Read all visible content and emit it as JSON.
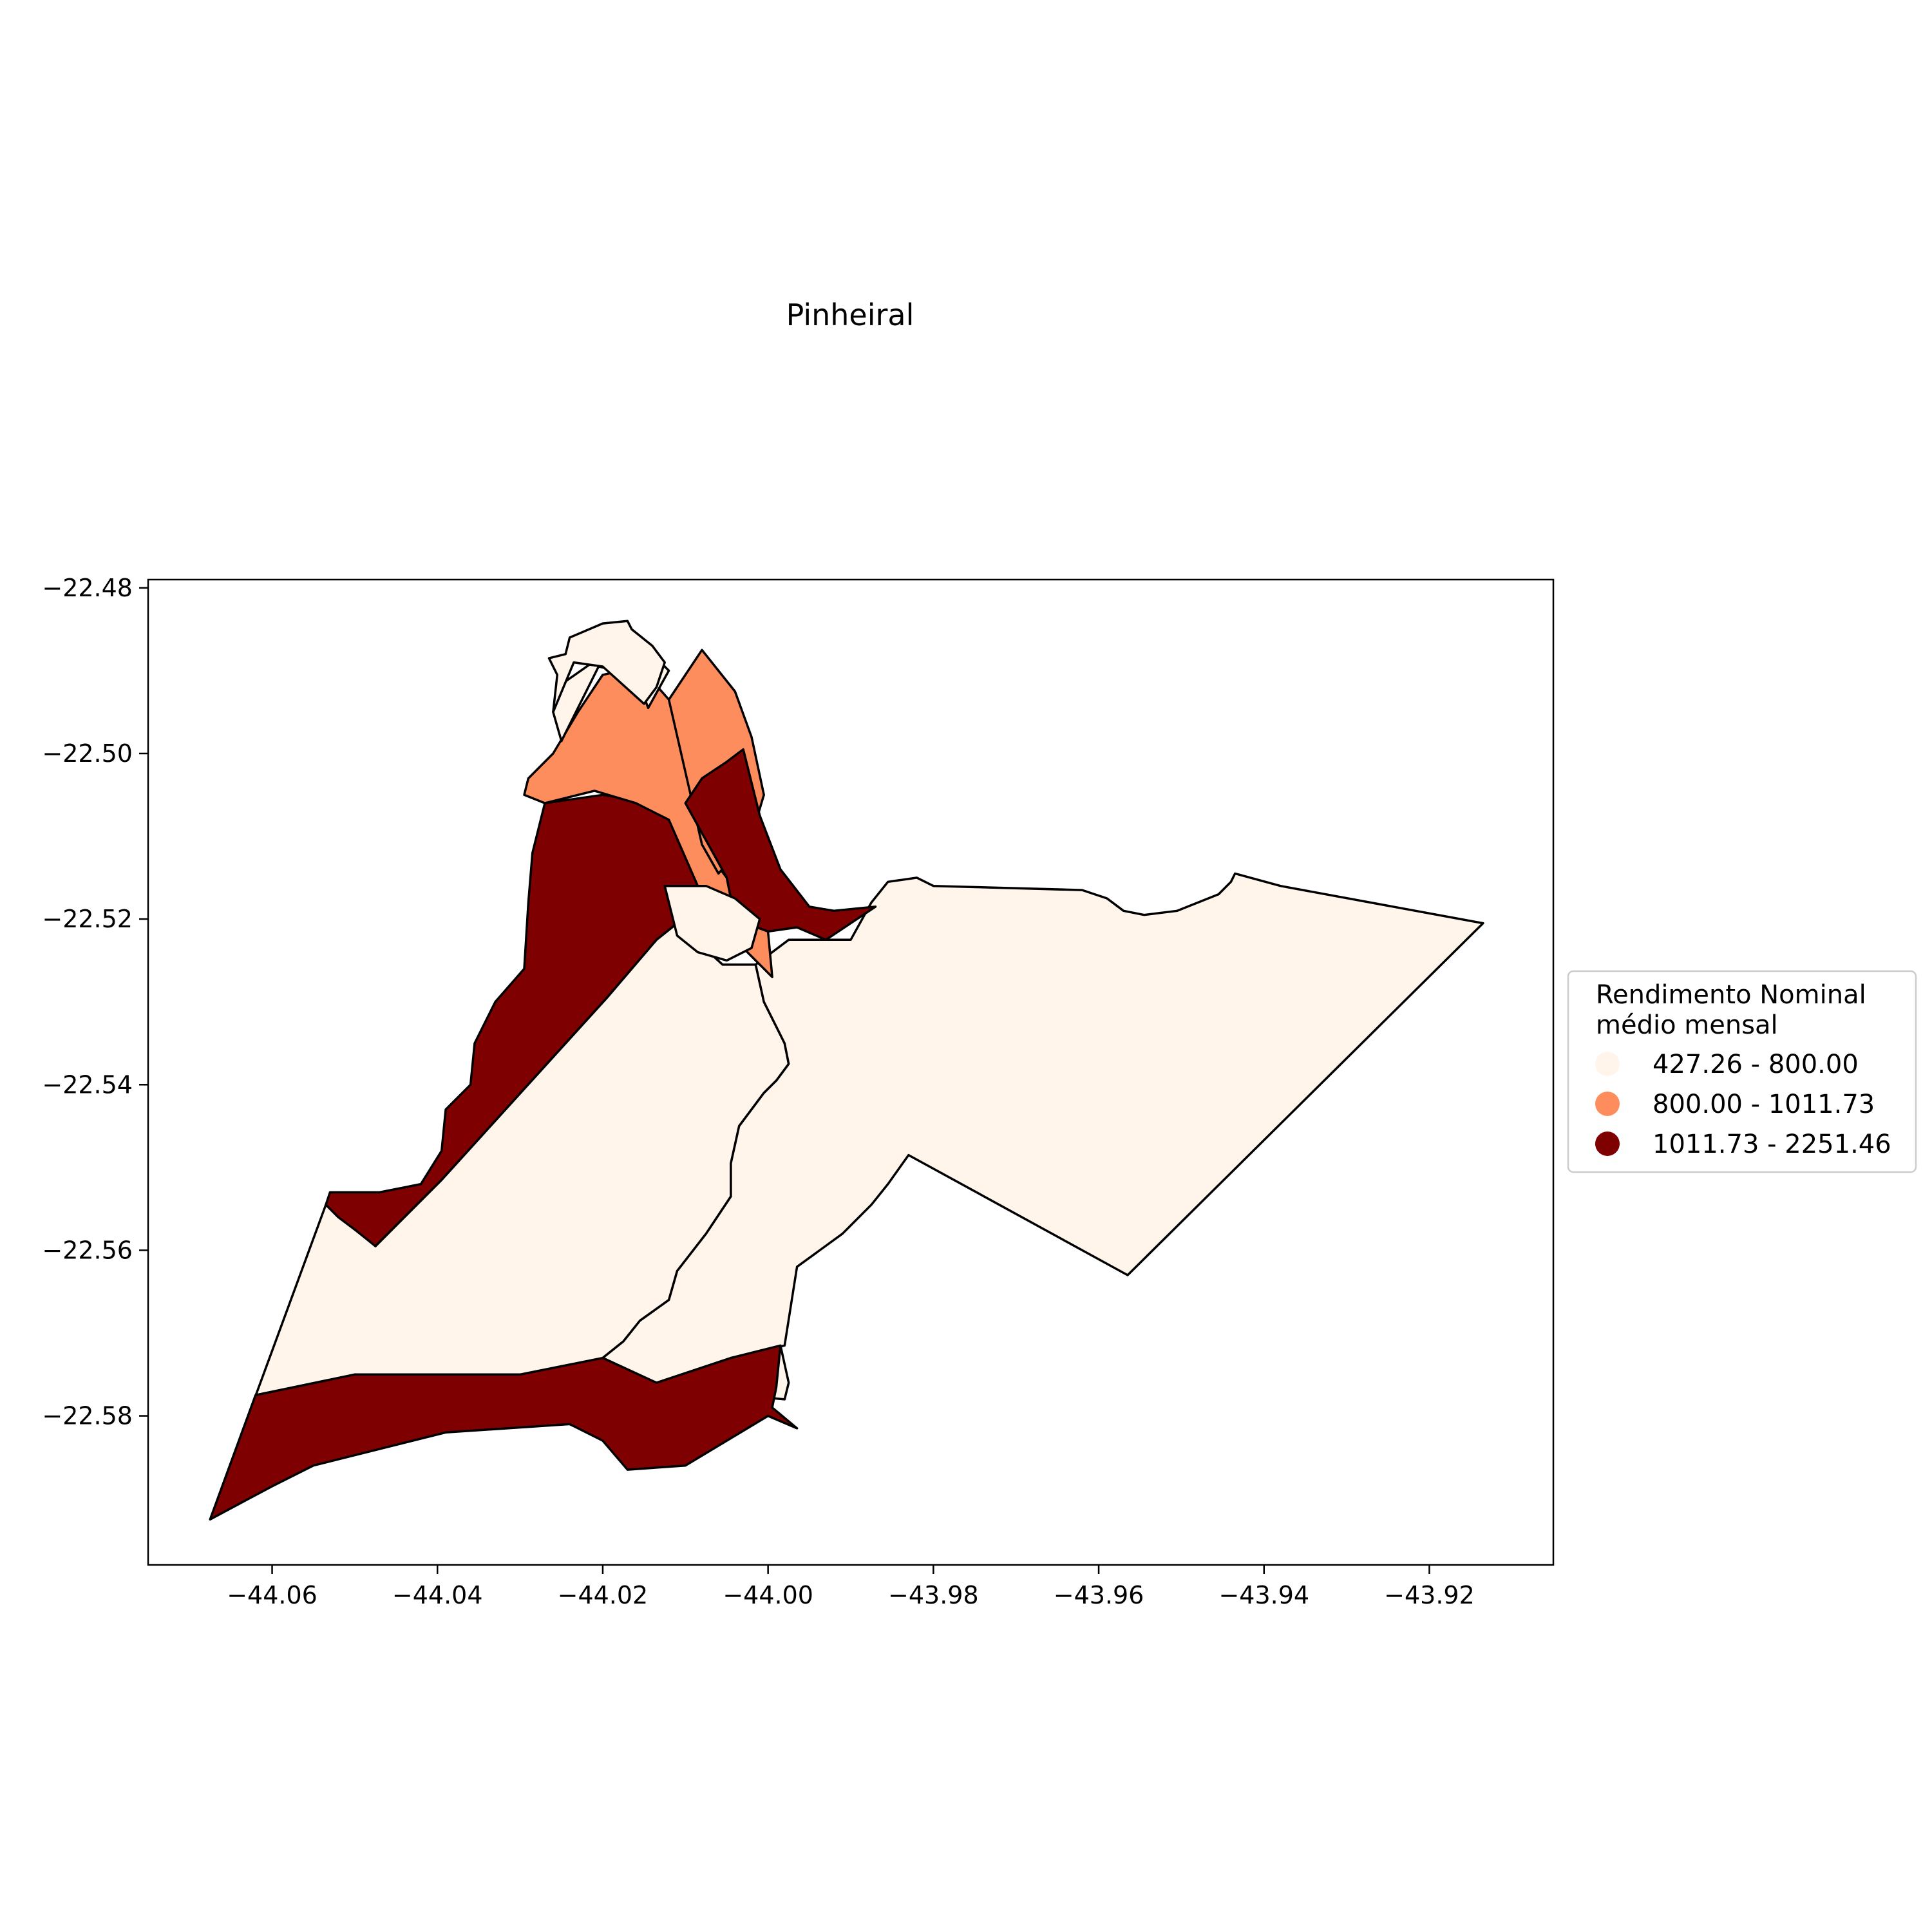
{
  "chart_data": {
    "type": "choropleth map",
    "title": "Pinheiral",
    "xlabel": "",
    "ylabel": "",
    "xlim": [
      -44.075,
      -43.905
    ],
    "ylim": [
      -22.598,
      -22.479
    ],
    "x_ticks": [
      -44.06,
      -44.04,
      -44.02,
      -44.0,
      -43.98,
      -43.96,
      -43.94,
      -43.92
    ],
    "y_ticks": [
      -22.48,
      -22.5,
      -22.52,
      -22.54,
      -22.56,
      -22.58
    ],
    "x_tick_labels": [
      "−44.06",
      "−44.04",
      "−44.02",
      "−44.00",
      "−43.98",
      "−43.96",
      "−43.94",
      "−43.92"
    ],
    "y_tick_labels": [
      "−22.48",
      "−22.50",
      "−22.52",
      "−22.54",
      "−22.56",
      "−22.58"
    ],
    "grid": false,
    "legend": {
      "title_line1": "Rendimento Nominal",
      "title_line2": "médio mensal",
      "placement": "right, outside axes",
      "classes": [
        {
          "label": "427.26 - 800.00",
          "color": "#fff5eb"
        },
        {
          "label": "800.00 - 1011.73",
          "color": "#fd8d5c"
        },
        {
          "label": "1011.73 - 2251.46",
          "color": "#7f0000"
        }
      ]
    },
    "regions": [
      {
        "class": 0,
        "coords": [
          [
            -44.0675,
            -22.5925
          ],
          [
            -44.0535,
            -22.5545
          ],
          [
            -44.0475,
            -22.5595
          ],
          [
            -44.0395,
            -22.5515
          ],
          [
            -44.0195,
            -22.5295
          ],
          [
            -44.0135,
            -22.5225
          ],
          [
            -44.011,
            -22.5205
          ],
          [
            -44.0055,
            -22.5255
          ],
          [
            -44.0015,
            -22.5255
          ],
          [
            -44.0005,
            -22.53
          ],
          [
            -43.999,
            -22.533
          ],
          [
            -43.998,
            -22.535
          ],
          [
            -43.9975,
            -22.5375
          ],
          [
            -43.999,
            -22.5395
          ],
          [
            -44.0005,
            -22.541
          ],
          [
            -44.0035,
            -22.545
          ],
          [
            -44.0045,
            -22.5495
          ],
          [
            -44.0045,
            -22.5535
          ],
          [
            -44.0075,
            -22.558
          ],
          [
            -44.011,
            -22.5625
          ],
          [
            -44.012,
            -22.566
          ],
          [
            -44.0155,
            -22.5685
          ],
          [
            -44.0175,
            -22.571
          ],
          [
            -44.02,
            -22.573
          ],
          [
            -44.0135,
            -22.576
          ],
          [
            -44.0045,
            -22.573
          ],
          [
            -43.9985,
            -22.5715
          ],
          [
            -43.9975,
            -22.576
          ],
          [
            -43.998,
            -22.578
          ],
          [
            -44.03,
            -22.575
          ],
          [
            -44.05,
            -22.575
          ],
          [
            -44.062,
            -22.5775
          ]
        ]
      },
      {
        "class": 0,
        "coords": [
          [
            -44.0015,
            -22.5255
          ],
          [
            -43.9975,
            -22.5225
          ],
          [
            -43.99,
            -22.5225
          ],
          [
            -43.9875,
            -22.518
          ],
          [
            -43.9855,
            -22.5155
          ],
          [
            -43.982,
            -22.515
          ],
          [
            -43.98,
            -22.516
          ],
          [
            -43.962,
            -22.5165
          ],
          [
            -43.959,
            -22.5175
          ],
          [
            -43.957,
            -22.519
          ],
          [
            -43.9545,
            -22.5195
          ],
          [
            -43.9505,
            -22.519
          ],
          [
            -43.9455,
            -22.517
          ],
          [
            -43.944,
            -22.5155
          ],
          [
            -43.9435,
            -22.5145
          ],
          [
            -43.938,
            -22.516
          ],
          [
            -43.9135,
            -22.5205
          ],
          [
            -43.9565,
            -22.563
          ],
          [
            -43.983,
            -22.5485
          ],
          [
            -43.9855,
            -22.552
          ],
          [
            -43.9875,
            -22.5545
          ],
          [
            -43.991,
            -22.558
          ],
          [
            -43.9965,
            -22.562
          ],
          [
            -43.998,
            -22.5715
          ],
          [
            -44.0045,
            -22.573
          ],
          [
            -44.0135,
            -22.576
          ],
          [
            -44.02,
            -22.573
          ],
          [
            -44.0175,
            -22.571
          ],
          [
            -44.0155,
            -22.5685
          ],
          [
            -44.012,
            -22.566
          ],
          [
            -44.011,
            -22.5625
          ],
          [
            -44.0075,
            -22.558
          ],
          [
            -44.0045,
            -22.5535
          ],
          [
            -44.0045,
            -22.5495
          ],
          [
            -44.0035,
            -22.545
          ],
          [
            -44.0005,
            -22.541
          ],
          [
            -43.999,
            -22.5395
          ],
          [
            -43.9975,
            -22.5375
          ],
          [
            -43.998,
            -22.535
          ],
          [
            -43.999,
            -22.533
          ],
          [
            -44.0005,
            -22.53
          ]
        ]
      },
      {
        "class": 2,
        "coords": [
          [
            -44.062,
            -22.5775
          ],
          [
            -44.05,
            -22.575
          ],
          [
            -44.03,
            -22.575
          ],
          [
            -44.02,
            -22.573
          ],
          [
            -44.0135,
            -22.576
          ],
          [
            -44.0045,
            -22.573
          ],
          [
            -43.9985,
            -22.5715
          ],
          [
            -43.999,
            -22.5765
          ],
          [
            -43.9995,
            -22.579
          ],
          [
            -43.9965,
            -22.5815
          ],
          [
            -44.0,
            -22.58
          ],
          [
            -44.01,
            -22.586
          ],
          [
            -44.017,
            -22.5865
          ],
          [
            -44.02,
            -22.583
          ],
          [
            -44.024,
            -22.581
          ],
          [
            -44.039,
            -22.582
          ],
          [
            -44.055,
            -22.586
          ],
          [
            -44.06,
            -22.5885
          ],
          [
            -44.0675,
            -22.5925
          ]
        ]
      },
      {
        "class": 2,
        "coords": [
          [
            -44.0535,
            -22.5545
          ],
          [
            -44.052,
            -22.556
          ],
          [
            -44.05,
            -22.5575
          ],
          [
            -44.0475,
            -22.5595
          ],
          [
            -44.0395,
            -22.5515
          ],
          [
            -44.0195,
            -22.5295
          ],
          [
            -44.0135,
            -22.5225
          ],
          [
            -44.011,
            -22.5205
          ],
          [
            -44.0085,
            -22.519
          ],
          [
            -44.008,
            -22.516
          ],
          [
            -44.01,
            -22.5085
          ],
          [
            -44.014,
            -22.506
          ],
          [
            -44.02,
            -22.505
          ],
          [
            -44.027,
            -22.506
          ],
          [
            -44.0285,
            -22.512
          ],
          [
            -44.029,
            -22.518
          ],
          [
            -44.0295,
            -22.526
          ],
          [
            -44.033,
            -22.53
          ],
          [
            -44.0355,
            -22.535
          ],
          [
            -44.036,
            -22.54
          ],
          [
            -44.039,
            -22.543
          ],
          [
            -44.0395,
            -22.548
          ],
          [
            -44.042,
            -22.552
          ],
          [
            -44.047,
            -22.553
          ],
          [
            -44.053,
            -22.553
          ]
        ]
      },
      {
        "class": 1,
        "coords": [
          [
            -44.027,
            -22.506
          ],
          [
            -44.0295,
            -22.505
          ],
          [
            -44.029,
            -22.503
          ],
          [
            -44.026,
            -22.5
          ],
          [
            -44.023,
            -22.495
          ],
          [
            -44.02,
            -22.4905
          ],
          [
            -44.0155,
            -22.4895
          ],
          [
            -44.012,
            -22.4935
          ],
          [
            -44.01,
            -22.498
          ],
          [
            -44.009,
            -22.502
          ],
          [
            -44.008,
            -22.507
          ],
          [
            -44.008,
            -22.511
          ],
          [
            -44.005,
            -22.515
          ],
          [
            -44.004,
            -22.52
          ],
          [
            -44.0,
            -22.5215
          ],
          [
            -43.9995,
            -22.527
          ],
          [
            -44.0025,
            -22.524
          ],
          [
            -44.007,
            -22.519
          ],
          [
            -44.0085,
            -22.516
          ],
          [
            -44.012,
            -22.508
          ],
          [
            -44.016,
            -22.506
          ],
          [
            -44.021,
            -22.5045
          ]
        ]
      },
      {
        "class": 1,
        "coords": [
          [
            -44.012,
            -22.4935
          ],
          [
            -44.008,
            -22.4875
          ],
          [
            -44.004,
            -22.4925
          ],
          [
            -44.002,
            -22.498
          ],
          [
            -44.0005,
            -22.505
          ],
          [
            -44.002,
            -22.51
          ],
          [
            -44.006,
            -22.5145
          ],
          [
            -44.008,
            -22.511
          ]
        ]
      },
      {
        "class": 2,
        "coords": [
          [
            -44.01,
            -22.506
          ],
          [
            -44.008,
            -22.503
          ],
          [
            -44.005,
            -22.501
          ],
          [
            -44.003,
            -22.4995
          ],
          [
            -44.001,
            -22.5075
          ],
          [
            -43.9985,
            -22.514
          ],
          [
            -43.995,
            -22.5185
          ],
          [
            -43.992,
            -22.519
          ],
          [
            -43.987,
            -22.5185
          ],
          [
            -43.993,
            -22.5225
          ],
          [
            -43.9965,
            -22.521
          ],
          [
            -44.0,
            -22.5215
          ],
          [
            -44.004,
            -22.52
          ],
          [
            -44.005,
            -22.515
          ]
        ]
      },
      {
        "class": 0,
        "coords": [
          [
            -44.0125,
            -22.516
          ],
          [
            -44.011,
            -22.522
          ],
          [
            -44.0085,
            -22.524
          ],
          [
            -44.005,
            -22.525
          ],
          [
            -44.002,
            -22.5235
          ],
          [
            -44.001,
            -22.52
          ],
          [
            -44.004,
            -22.5175
          ],
          [
            -44.0075,
            -22.516
          ]
        ]
      },
      {
        "class": 0,
        "coords": [
          [
            -44.0255,
            -22.492
          ],
          [
            -44.0205,
            -22.4885
          ],
          [
            -44.015,
            -22.487
          ],
          [
            -44.012,
            -22.49
          ],
          [
            -44.0145,
            -22.4945
          ],
          [
            -44.016,
            -22.4905
          ],
          [
            -44.0205,
            -22.4895
          ],
          [
            -44.025,
            -22.4985
          ],
          [
            -44.026,
            -22.495
          ],
          [
            -44.0255,
            -22.492
          ]
        ]
      },
      {
        "class": 0,
        "coords": [
          [
            -44.026,
            -22.495
          ],
          [
            -44.0255,
            -22.4905
          ],
          [
            -44.0265,
            -22.4885
          ],
          [
            -44.0245,
            -22.488
          ],
          [
            -44.024,
            -22.486
          ],
          [
            -44.02,
            -22.4843
          ],
          [
            -44.017,
            -22.484
          ],
          [
            -44.0165,
            -22.485
          ],
          [
            -44.014,
            -22.487
          ],
          [
            -44.0125,
            -22.489
          ],
          [
            -44.0135,
            -22.492
          ],
          [
            -44.015,
            -22.494
          ],
          [
            -44.02,
            -22.4895
          ],
          [
            -44.0235,
            -22.489
          ]
        ]
      }
    ]
  }
}
